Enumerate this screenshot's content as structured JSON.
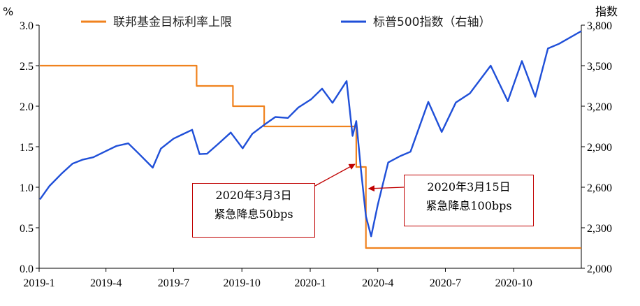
{
  "chart_data": {
    "type": "line",
    "left_axis": {
      "unit": "%",
      "min": 0,
      "max": 3.0,
      "ticks": [
        "0.0",
        "0.5",
        "1.0",
        "1.5",
        "2.0",
        "2.5",
        "3.0"
      ]
    },
    "right_axis": {
      "unit": "指数",
      "min": 2000,
      "max": 3800,
      "ticks": [
        "2,000",
        "2,300",
        "2,600",
        "2,900",
        "3,200",
        "3,500",
        "3,800"
      ]
    },
    "x_axis": {
      "start": "2019-01",
      "end": "2020-12",
      "ticks": [
        "2019-1",
        "2019-4",
        "2019-7",
        "2019-10",
        "2020-1",
        "2020-4",
        "2020-7",
        "2020-10"
      ]
    },
    "legend_position": "top",
    "series": [
      {
        "name": "联邦基金目标利率上限",
        "axis": "left",
        "color": "#f0821e",
        "step": true,
        "points": [
          [
            "2019-01-02",
            2.5
          ],
          [
            "2019-08-01",
            2.25
          ],
          [
            "2019-09-19",
            2.0
          ],
          [
            "2019-10-31",
            1.75
          ],
          [
            "2020-03-03",
            1.25
          ],
          [
            "2020-03-16",
            0.25
          ],
          [
            "2020-12-31",
            0.25
          ]
        ]
      },
      {
        "name": "标普500指数（右轴）",
        "axis": "right",
        "color": "#1f4fd8",
        "points": [
          [
            "2019-01-02",
            2510
          ],
          [
            "2019-01-15",
            2610
          ],
          [
            "2019-02-01",
            2705
          ],
          [
            "2019-02-15",
            2775
          ],
          [
            "2019-03-01",
            2805
          ],
          [
            "2019-03-15",
            2822
          ],
          [
            "2019-04-01",
            2868
          ],
          [
            "2019-04-15",
            2905
          ],
          [
            "2019-05-01",
            2925
          ],
          [
            "2019-05-15",
            2850
          ],
          [
            "2019-06-03",
            2745
          ],
          [
            "2019-06-14",
            2886
          ],
          [
            "2019-07-01",
            2960
          ],
          [
            "2019-07-26",
            3025
          ],
          [
            "2019-08-05",
            2845
          ],
          [
            "2019-08-15",
            2848
          ],
          [
            "2019-08-30",
            2920
          ],
          [
            "2019-09-16",
            3005
          ],
          [
            "2019-10-02",
            2888
          ],
          [
            "2019-10-15",
            2995
          ],
          [
            "2019-11-01",
            3066
          ],
          [
            "2019-11-15",
            3120
          ],
          [
            "2019-12-02",
            3113
          ],
          [
            "2019-12-16",
            3190
          ],
          [
            "2020-01-02",
            3250
          ],
          [
            "2020-01-17",
            3330
          ],
          [
            "2020-01-31",
            3225
          ],
          [
            "2020-02-19",
            3386
          ],
          [
            "2020-02-27",
            2980
          ],
          [
            "2020-03-03",
            3090
          ],
          [
            "2020-03-09",
            2746
          ],
          [
            "2020-03-16",
            2386
          ],
          [
            "2020-03-23",
            2237
          ],
          [
            "2020-04-01",
            2470
          ],
          [
            "2020-04-15",
            2783
          ],
          [
            "2020-05-01",
            2830
          ],
          [
            "2020-05-15",
            2863
          ],
          [
            "2020-06-08",
            3232
          ],
          [
            "2020-06-26",
            3009
          ],
          [
            "2020-07-15",
            3227
          ],
          [
            "2020-08-03",
            3295
          ],
          [
            "2020-08-31",
            3500
          ],
          [
            "2020-09-23",
            3237
          ],
          [
            "2020-10-12",
            3534
          ],
          [
            "2020-10-30",
            3270
          ],
          [
            "2020-11-16",
            3627
          ],
          [
            "2020-12-01",
            3662
          ],
          [
            "2020-12-31",
            3756
          ]
        ]
      }
    ],
    "annotations": [
      {
        "line1": "2020年3月3日",
        "line2": "紧急降息50bps",
        "date": "2020-03-03",
        "value": 1.25,
        "axis": "left"
      },
      {
        "line1": "2020年3月15日",
        "line2": "紧急降息100bps",
        "date": "2020-03-16",
        "value": 2590,
        "axis": "right"
      }
    ]
  }
}
